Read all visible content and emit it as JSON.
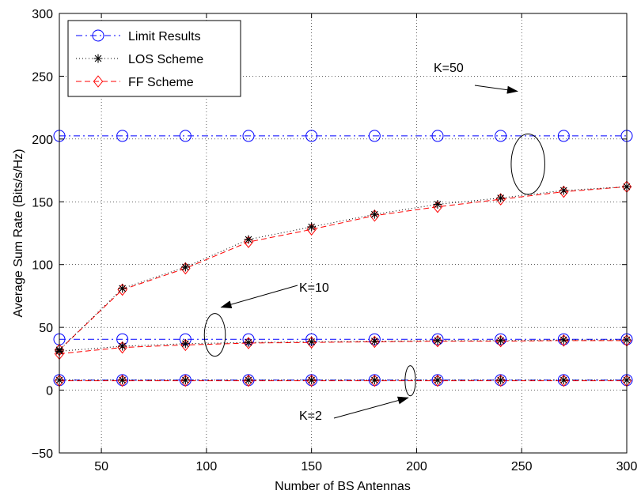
{
  "chart_data": {
    "type": "line",
    "xlabel": "Number of BS Antennas",
    "ylabel": "Average Sum Rate (Bits/s/Hz)",
    "xlim": [
      30,
      300
    ],
    "ylim": [
      -50,
      300
    ],
    "xticks": [
      50,
      100,
      150,
      200,
      250,
      300
    ],
    "yticks": [
      -50,
      0,
      50,
      100,
      150,
      200,
      250,
      300
    ],
    "grid": true,
    "legend_position": "top-left",
    "x": [
      30,
      60,
      90,
      120,
      150,
      180,
      210,
      240,
      270,
      300
    ],
    "series": [
      {
        "name": "Limit Results",
        "group": "K=50",
        "color": "#0000ff",
        "values": [
          202.5,
          202.5,
          202.5,
          202.5,
          202.5,
          202.5,
          202.5,
          202.5,
          202.5,
          202.5
        ]
      },
      {
        "name": "LOS Scheme",
        "group": "K=50",
        "color": "#000000",
        "values": [
          32,
          81,
          98,
          120,
          130,
          140,
          148,
          153,
          159,
          162
        ]
      },
      {
        "name": "FF Scheme",
        "group": "K=50",
        "color": "#ff0000",
        "values": [
          32,
          80,
          97,
          118,
          128,
          139,
          146,
          152,
          158,
          162
        ]
      },
      {
        "name": "Limit Results",
        "group": "K=10",
        "color": "#0000ff",
        "values": [
          40.5,
          40.5,
          40.5,
          40.5,
          40.5,
          40.5,
          40.5,
          40.5,
          40.5,
          40.5
        ]
      },
      {
        "name": "LOS Scheme",
        "group": "K=10",
        "color": "#000000",
        "values": [
          31,
          35,
          37,
          38,
          38.5,
          39,
          39.5,
          39.5,
          40,
          40
        ]
      },
      {
        "name": "FF Scheme",
        "group": "K=10",
        "color": "#ff0000",
        "values": [
          29,
          34,
          36,
          37.5,
          38,
          38.5,
          39,
          39,
          39.5,
          39.5
        ]
      },
      {
        "name": "Limit Results",
        "group": "K=2",
        "color": "#0000ff",
        "values": [
          8,
          8,
          8,
          8,
          8,
          8,
          8,
          8,
          8,
          8
        ]
      },
      {
        "name": "LOS Scheme",
        "group": "K=2",
        "color": "#000000",
        "values": [
          8,
          8,
          8,
          8,
          8,
          8,
          8,
          8,
          8,
          8
        ]
      },
      {
        "name": "FF Scheme",
        "group": "K=2",
        "color": "#ff0000",
        "values": [
          7.5,
          7.5,
          7.5,
          7.5,
          7.5,
          7.5,
          7.5,
          7.5,
          7.5,
          7.5
        ]
      }
    ],
    "legend": [
      {
        "label": "Limit Results",
        "color": "#0000ff",
        "marker": "circle"
      },
      {
        "label": "LOS Scheme",
        "color": "#000000",
        "marker": "asterisk"
      },
      {
        "label": "FF Scheme",
        "color": "#ff0000",
        "marker": "diamond"
      }
    ],
    "annotations": [
      {
        "text": "K=50"
      },
      {
        "text": "K=10"
      },
      {
        "text": "K=2"
      }
    ]
  }
}
